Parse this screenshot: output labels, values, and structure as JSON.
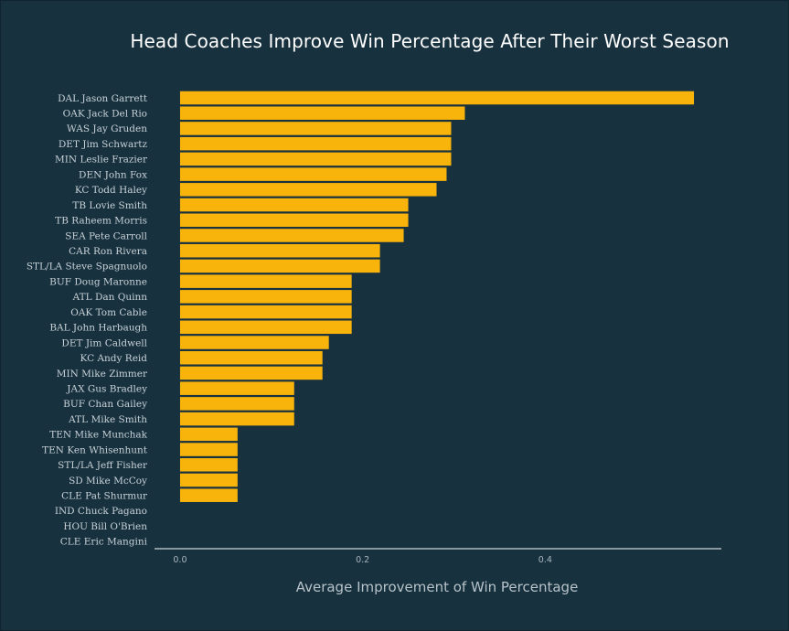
{
  "chart_data": {
    "type": "bar",
    "orientation": "horizontal",
    "title": "Head Coaches Improve Win Percentage After Their Worst Season",
    "xlabel": "Average Improvement of Win Percentage",
    "ylabel": "",
    "xlim": [
      -0.028,
      0.593
    ],
    "x_ticks": [
      0.0,
      0.2,
      0.4
    ],
    "x_tick_labels": [
      "0.0",
      "0.2",
      "0.4"
    ],
    "bar_color": "#f9b40c",
    "background_color": "#17313f",
    "grid": false,
    "legend": "none",
    "categories": [
      "DAL Jason Garrett",
      "OAK Jack Del Rio",
      "WAS Jay Gruden",
      "DET Jim Schwartz",
      "MIN Leslie Frazier",
      "DEN John Fox",
      "KC Todd Haley",
      "TB Lovie Smith",
      "TB Raheem Morris",
      "SEA Pete Carroll",
      "CAR Ron Rivera",
      "STL/LA Steve Spagnuolo",
      "BUF Doug Maronne",
      "ATL Dan Quinn",
      "OAK Tom Cable",
      "BAL John Harbaugh",
      "DET Jim Caldwell",
      "KC Andy Reid",
      "MIN Mike Zimmer",
      "JAX Gus Bradley",
      "BUF Chan Gailey",
      "ATL Mike Smith",
      "TEN Mike Munchak",
      "TEN Ken Whisenhunt",
      "STL/LA Jeff Fisher",
      "SD Mike McCoy",
      "CLE Pat Shurmur",
      "IND Chuck Pagano",
      "HOU Bill O'Brien",
      "CLE Eric Mangini"
    ],
    "values": [
      0.563,
      0.312,
      0.297,
      0.297,
      0.297,
      0.292,
      0.281,
      0.25,
      0.25,
      0.245,
      0.219,
      0.219,
      0.188,
      0.188,
      0.188,
      0.188,
      0.163,
      0.156,
      0.156,
      0.125,
      0.125,
      0.125,
      0.063,
      0.063,
      0.063,
      0.063,
      0.063,
      0.0,
      0.0,
      0.0
    ]
  }
}
